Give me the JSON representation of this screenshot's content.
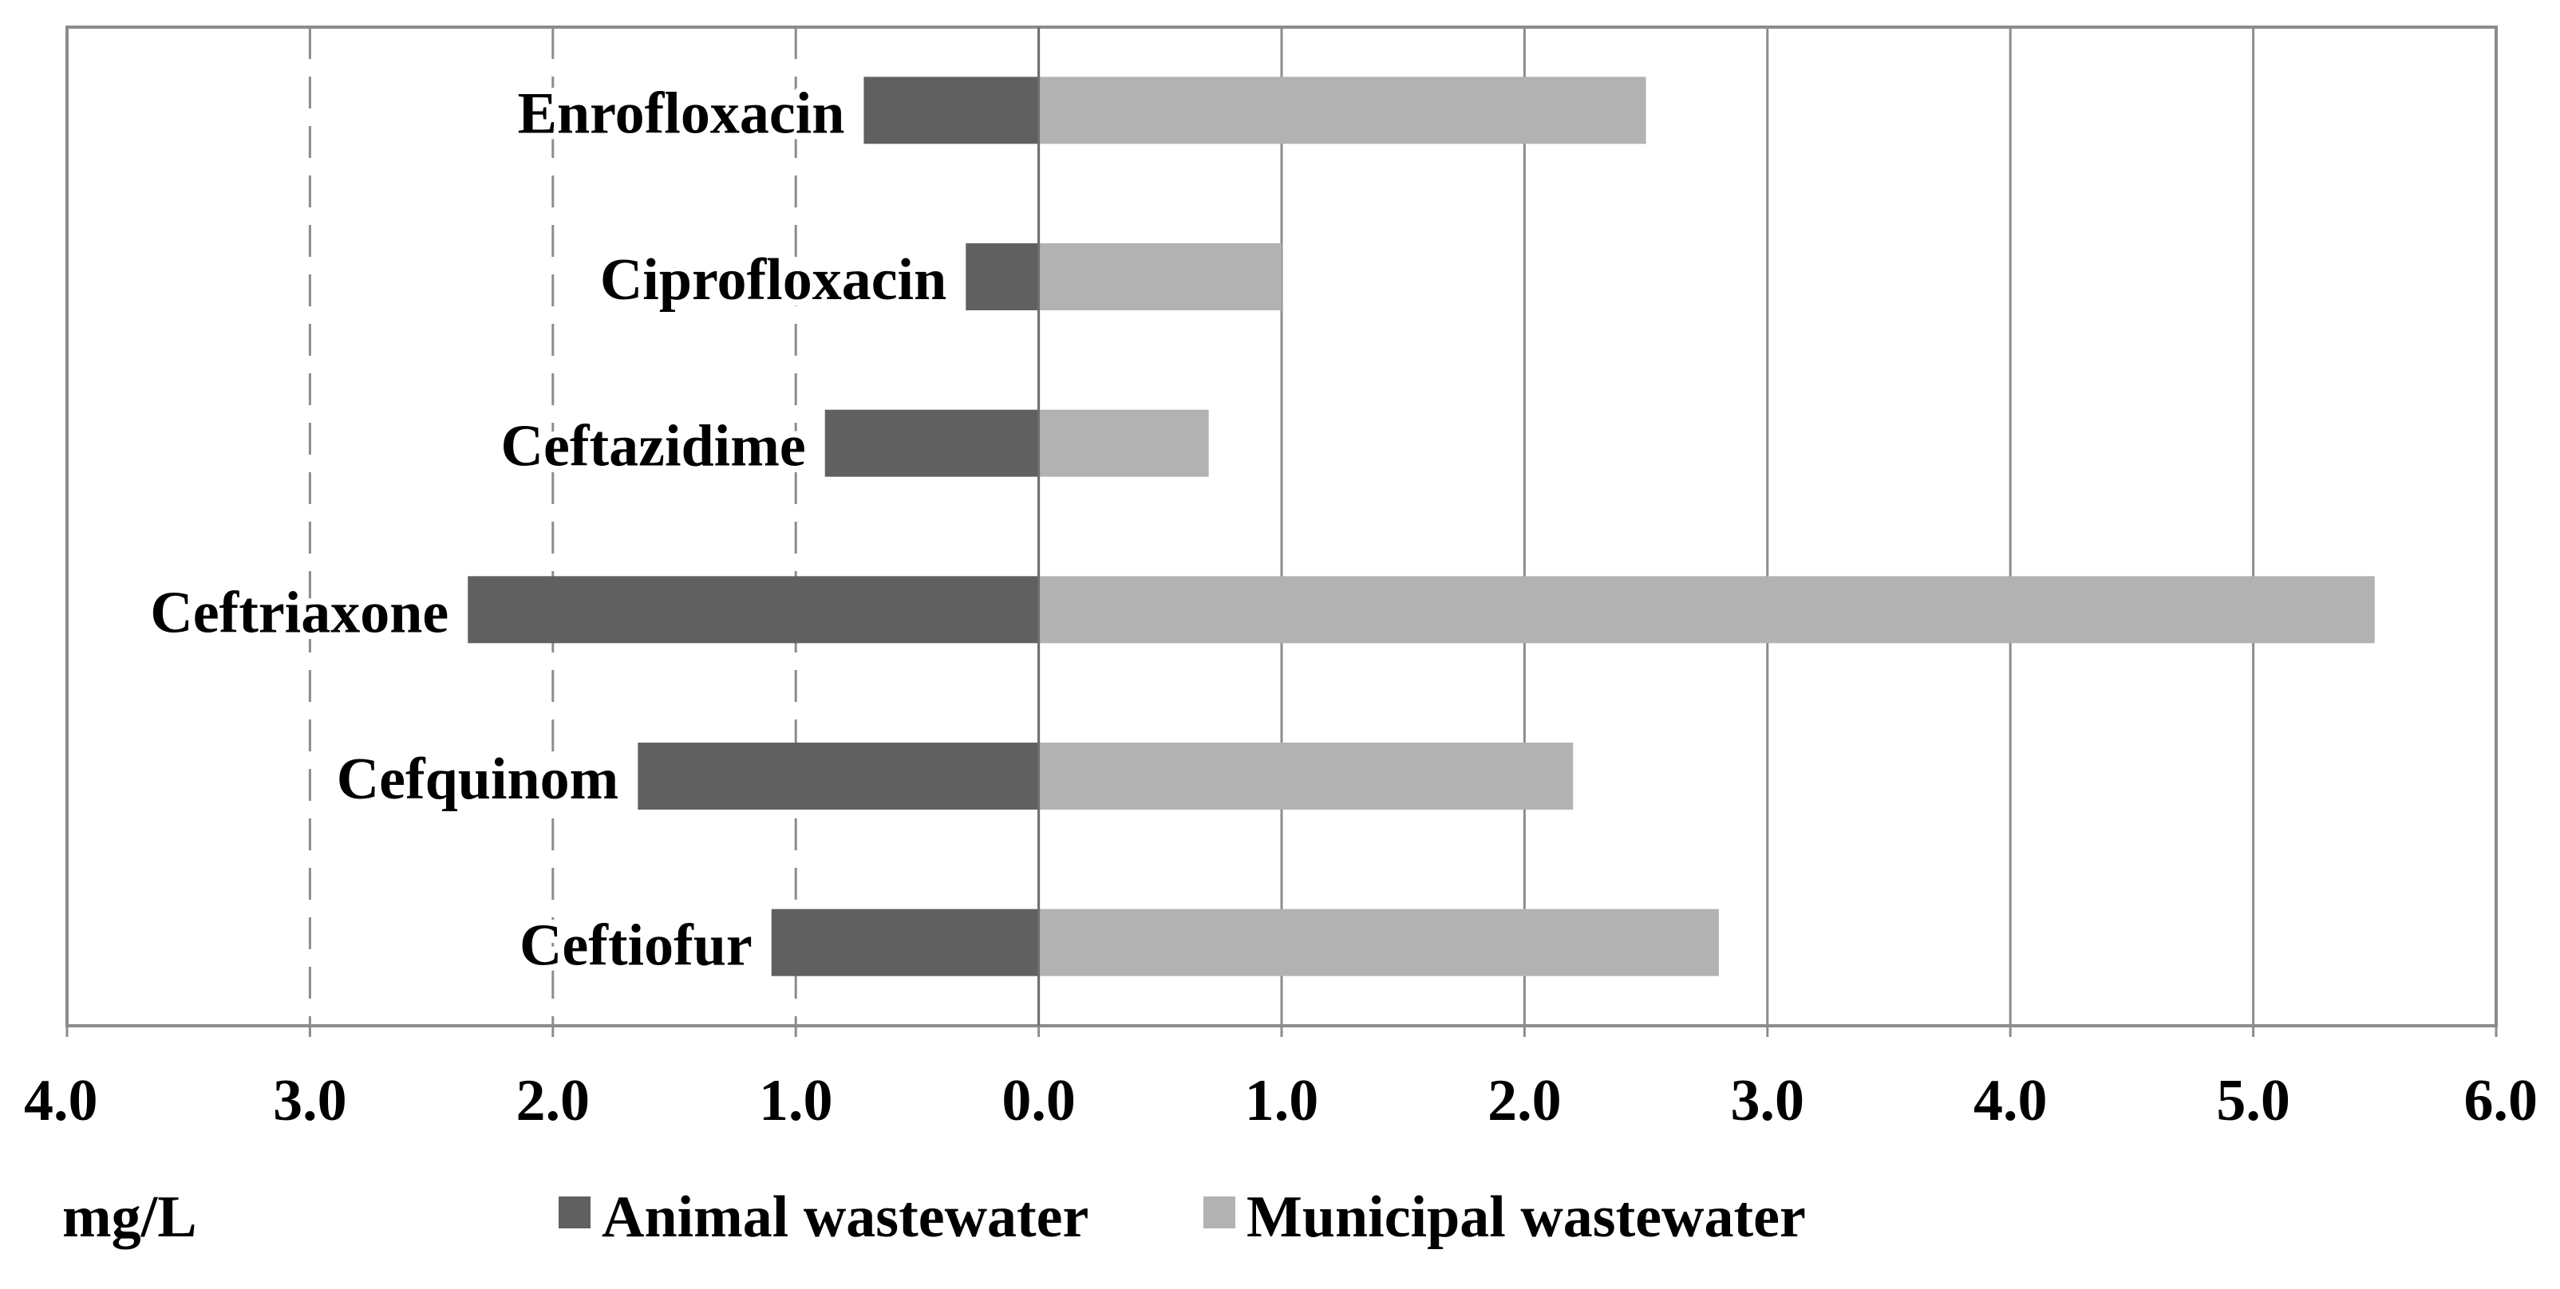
{
  "chart_data": {
    "type": "bar",
    "orientation": "horizontal-diverging",
    "title": "",
    "unit_label": "mg/L",
    "categories": [
      "Enrofloxacin",
      "Ciprofloxacin",
      "Ceftazidime",
      "Ceftriaxone",
      "Cefquinom",
      "Ceftiofur"
    ],
    "series": [
      {
        "name": "Animal wastewater",
        "direction": "left",
        "color": "#606060",
        "values": [
          0.72,
          0.3,
          0.88,
          2.35,
          1.65,
          1.1
        ]
      },
      {
        "name": "Municipal wastewater",
        "direction": "right",
        "color": "#b2b2b2",
        "values": [
          2.5,
          1.0,
          0.7,
          5.5,
          2.2,
          2.8
        ]
      }
    ],
    "xlim": [
      -4,
      6
    ],
    "tick_values": [
      -4,
      -3,
      -2,
      -1,
      0,
      1,
      2,
      3,
      4,
      5,
      6
    ],
    "tick_labels": [
      "4.0",
      "3.0",
      "2.0",
      "1.0",
      "0.0",
      "1.0",
      "2.0",
      "3.0",
      "4.0",
      "5.0",
      "6.0"
    ],
    "grid": true,
    "legend_position": "bottom"
  }
}
